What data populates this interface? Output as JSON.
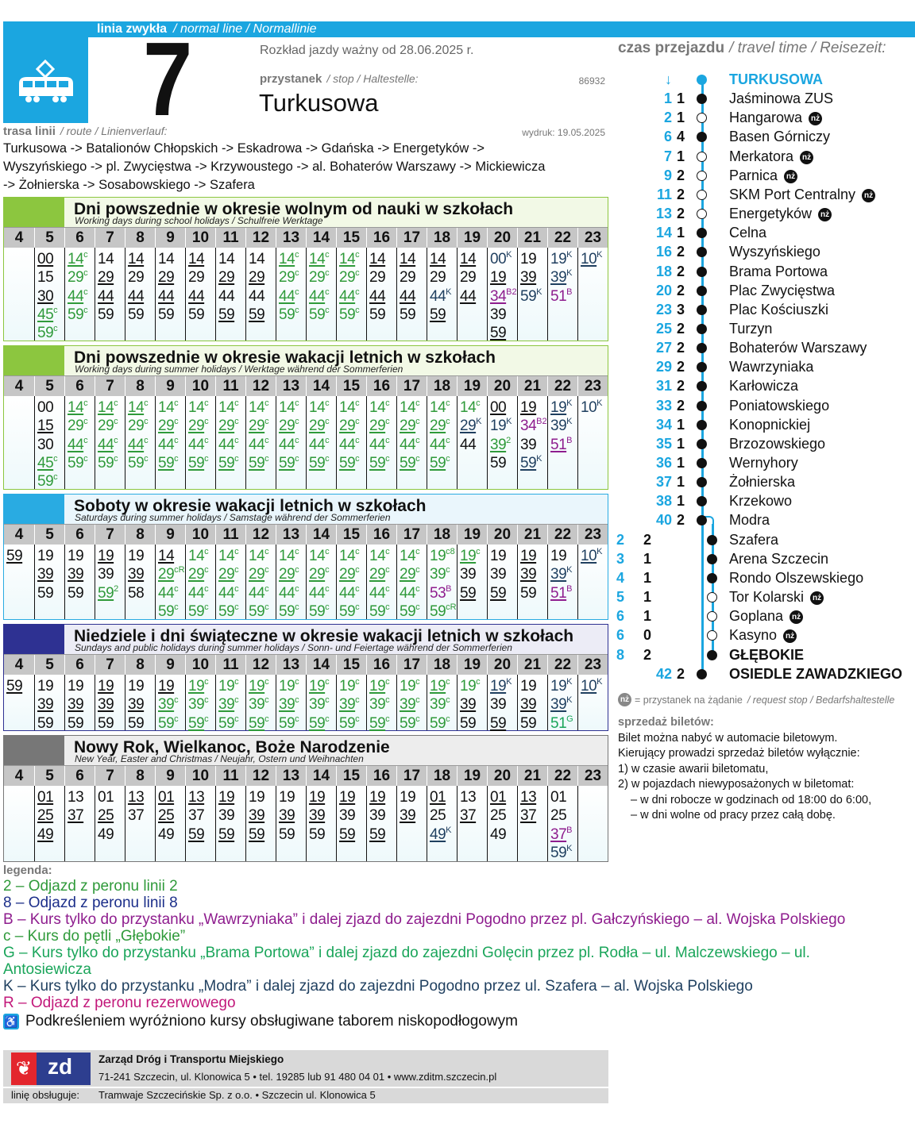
{
  "header": {
    "line_type": "linia zwykła",
    "line_type_en_de": "/ normal line / Normallinie",
    "line_number": "7",
    "valid_from": "Rozkład jazdy ważny od 28.06.2025 r.",
    "stop_label": "przystanek",
    "stop_label_en_de": "/ stop / Haltestelle:",
    "stop_id": "86932",
    "stop_name": "Turkusowa",
    "route_label": "trasa linii",
    "route_label_en_de": "/ route / Linienverlauf:",
    "printed": "wydruk: 19.05.2025",
    "route_lines": [
      "Turkusowa -> Batalionów Chłopskich -> Eskadrowa -> Gdańska -> Energetyków ->",
      "Wyszyńskiego -> pl. Zwycięstwa -> Krzywoustego -> al. Bohaterów Warszawy -> Mickiewicza",
      "-> Żołnierska -> Sosabowskiego -> Szafera"
    ],
    "icon": "tram-icon",
    "brand_color": "#1ba6e0"
  },
  "hours": [
    "4",
    "5",
    "6",
    "7",
    "8",
    "9",
    "10",
    "11",
    "12",
    "13",
    "14",
    "15",
    "16",
    "17",
    "18",
    "19",
    "20",
    "21",
    "22",
    "23"
  ],
  "superscript_colors": {
    "c": "#2f9a3a",
    "2": "#2f9a3a",
    "c8": "#2f9a3a",
    "cR": "#2f9a3a",
    "K": "#1f3f5f",
    "B": "#8e1d8e",
    "B2": "#8e1d8e",
    "G": "#1aa55a"
  },
  "sections": [
    {
      "title": "Dni powszednie w okresie wolnym od nauki w szkołach",
      "subtitle": "Working days during school holidays / Schulfreie Werktage",
      "accent": "#8cc63f",
      "tint": "#f2f9e6",
      "minutes": [
        [],
        [
          "_00",
          "15",
          "_30",
          "_45^c",
          "59^c"
        ],
        [
          "_14^c",
          "29^c",
          "_44^c",
          "59^c"
        ],
        [
          "14",
          "_29",
          "_44",
          "59"
        ],
        [
          "_14",
          "29",
          "_44",
          "59"
        ],
        [
          "14",
          "_29",
          "_44",
          "59"
        ],
        [
          "_14",
          "29",
          "_44",
          "59"
        ],
        [
          "14",
          "_29",
          "44",
          "_59"
        ],
        [
          "14",
          "_29",
          "44",
          "_59"
        ],
        [
          "_14^c",
          "29^c",
          "_44^c",
          "59^c"
        ],
        [
          "_14^c",
          "29^c",
          "_44^c",
          "59^c"
        ],
        [
          "_14^c",
          "29^c",
          "_44^c",
          "59^c"
        ],
        [
          "_14",
          "29",
          "_44",
          "59"
        ],
        [
          "_14",
          "29",
          "_44",
          "59"
        ],
        [
          "_14",
          "29",
          "44^K",
          "_59"
        ],
        [
          "_14",
          "29",
          "_44"
        ],
        [
          "00^K",
          "_19",
          "_34^B2",
          "39",
          "_59"
        ],
        [
          "19",
          "_39",
          "59^K"
        ],
        [
          "19^K",
          "_39^K",
          "51^B"
        ],
        [
          "_10^K"
        ]
      ]
    },
    {
      "title": "Dni powszednie w okresie wakacji letnich w szkołach",
      "subtitle": "Working days during summer holidays / Werktage während der Sommerferien",
      "accent": "#8cc63f",
      "tint": "#f2f9e6",
      "minutes": [
        [],
        [
          "00",
          "_15",
          "30",
          "_45^c",
          "59^c"
        ],
        [
          "_14^c",
          "29^c",
          "_44^c",
          "59^c"
        ],
        [
          "_14^c",
          "29^c",
          "_44^c",
          "59^c"
        ],
        [
          "_14^c",
          "29^c",
          "_44^c",
          "59^c"
        ],
        [
          "14^c",
          "_29^c",
          "44^c",
          "_59^c"
        ],
        [
          "14^c",
          "_29^c",
          "44^c",
          "_59^c"
        ],
        [
          "14^c",
          "_29^c",
          "44^c",
          "_59^c"
        ],
        [
          "14^c",
          "_29^c",
          "44^c",
          "_59^c"
        ],
        [
          "14^c",
          "_29^c",
          "44^c",
          "_59^c"
        ],
        [
          "14^c",
          "_29^c",
          "44^c",
          "_59^c"
        ],
        [
          "14^c",
          "_29^c",
          "44^c",
          "_59^c"
        ],
        [
          "14^c",
          "_29^c",
          "44^c",
          "_59^c"
        ],
        [
          "14^c",
          "_29^c",
          "44^c",
          "_59^c"
        ],
        [
          "14^c",
          "_29^c",
          "44^c",
          "_59^c"
        ],
        [
          "14^c",
          "_29^K",
          "44"
        ],
        [
          "_00",
          "19^K",
          "_39^2",
          "59"
        ],
        [
          "_19",
          "34^B2",
          "39",
          "_59^K"
        ],
        [
          "_19^K",
          "39^K",
          "_51^B"
        ],
        [
          "10^K"
        ]
      ]
    },
    {
      "title": "Soboty w okresie wakacji letnich w szkołach",
      "subtitle": "Saturdays during summer holidays / Samstage während der Sommerferien",
      "accent": "#29abe2",
      "tint": "#eaf6fc",
      "minutes": [
        [
          "_59"
        ],
        [
          "19",
          "_39",
          "59"
        ],
        [
          "19",
          "_39",
          "59"
        ],
        [
          "_19",
          "39",
          "_59^2"
        ],
        [
          "19",
          "_39",
          "58"
        ],
        [
          "_14",
          "_29^cR",
          "44^c",
          "59^c"
        ],
        [
          "14^c",
          "_29^c",
          "44^c",
          "59^c"
        ],
        [
          "14^c",
          "_29^c",
          "44^c",
          "59^c"
        ],
        [
          "14^c",
          "_29^c",
          "44^c",
          "59^c"
        ],
        [
          "14^c",
          "_29^c",
          "44^c",
          "59^c"
        ],
        [
          "14^c",
          "_29^c",
          "44^c",
          "59^c"
        ],
        [
          "14^c",
          "_29^c",
          "44^c",
          "59^c"
        ],
        [
          "14^c",
          "_29^c",
          "44^c",
          "59^c"
        ],
        [
          "14^c",
          "_29^c",
          "44^c",
          "59^c"
        ],
        [
          "19^c8",
          "39^c",
          "53^B",
          "59^cR"
        ],
        [
          "_19^c",
          "39",
          "_59"
        ],
        [
          "19",
          "39",
          "_59"
        ],
        [
          "_19",
          "_39",
          "59"
        ],
        [
          "19",
          "_39^K",
          "_51^B"
        ],
        [
          "_10^K"
        ]
      ]
    },
    {
      "title": "Niedziele i dni świąteczne w okresie wakacji letnich w szkołach",
      "subtitle": "Sundays and public holidays during summer holidays / Sonn- und Feiertage während der Sommerferien",
      "accent": "#2e3192",
      "tint": "#ececf6",
      "minutes": [
        [
          "_59"
        ],
        [
          "19",
          "_39",
          "59"
        ],
        [
          "19",
          "_39",
          "59"
        ],
        [
          "_19",
          "_39",
          "59"
        ],
        [
          "19",
          "_39",
          "59"
        ],
        [
          "_19",
          "_39^c",
          "59^c"
        ],
        [
          "_19^c",
          "39^c",
          "_59^c"
        ],
        [
          "19^c",
          "_39^c",
          "59^c"
        ],
        [
          "_19^c",
          "39^c",
          "_59^c"
        ],
        [
          "19^c",
          "_39^c",
          "59^c"
        ],
        [
          "_19^c",
          "39^c",
          "_59^c"
        ],
        [
          "19^c",
          "_39^c",
          "59^c"
        ],
        [
          "_19^c",
          "39^c",
          "_59^c"
        ],
        [
          "19^c",
          "_39^c",
          "59^c"
        ],
        [
          "_19^c",
          "39^c",
          "59^c"
        ],
        [
          "19^c",
          "_39",
          "59"
        ],
        [
          "_19^K",
          "39",
          "_59"
        ],
        [
          "19",
          "_39",
          "59"
        ],
        [
          "19^K",
          "_39^K",
          "51^G"
        ],
        [
          "_10^K"
        ]
      ]
    },
    {
      "title": "Nowy Rok, Wielkanoc, Boże Narodzenie",
      "subtitle": "New Year, Easter and Christmas / Neujahr, Ostern und Weihnachten",
      "accent": "#777777",
      "tint": "#ededed",
      "minutes": [
        [],
        [
          "_01",
          "_25",
          "_49"
        ],
        [
          "13",
          "_37"
        ],
        [
          "01",
          "_25",
          "49"
        ],
        [
          "_13",
          "37"
        ],
        [
          "_01",
          "_25",
          "49"
        ],
        [
          "_13",
          "37",
          "_59"
        ],
        [
          "_19",
          "39",
          "_59"
        ],
        [
          "19",
          "_39",
          "_59"
        ],
        [
          "19",
          "_39",
          "59"
        ],
        [
          "_19",
          "_39",
          "59"
        ],
        [
          "_19",
          "39",
          "_59"
        ],
        [
          "_19",
          "39",
          "_59"
        ],
        [
          "19",
          "_39"
        ],
        [
          "_01",
          "25",
          "_49^K"
        ],
        [
          "13",
          "_37"
        ],
        [
          "_01",
          "25",
          "49"
        ],
        [
          "_13",
          "_37"
        ],
        [
          "01",
          "25",
          "_37^B",
          "59^K"
        ],
        []
      ]
    }
  ],
  "travel_time": {
    "label": "czas przejazdu",
    "label_en_de": "/ travel time / Reisezeit:",
    "direction_icon": "arrow-down-icon",
    "stops": [
      {
        "total": "",
        "seg": "",
        "name": "TURKUSOWA",
        "type": "start"
      },
      {
        "total": "1",
        "seg": "1",
        "name": "Jaśminowa ZUS",
        "type": "stop"
      },
      {
        "total": "2",
        "seg": "1",
        "name": "Hangarowa",
        "type": "request"
      },
      {
        "total": "6",
        "seg": "4",
        "name": "Basen Górniczy",
        "type": "stop"
      },
      {
        "total": "7",
        "seg": "1",
        "name": "Merkatora",
        "type": "request"
      },
      {
        "total": "9",
        "seg": "2",
        "name": "Parnica",
        "type": "request"
      },
      {
        "total": "11",
        "seg": "2",
        "name": "SKM Port Centralny",
        "type": "request"
      },
      {
        "total": "13",
        "seg": "2",
        "name": "Energetyków",
        "type": "request"
      },
      {
        "total": "14",
        "seg": "1",
        "name": "Celna",
        "type": "stop"
      },
      {
        "total": "16",
        "seg": "2",
        "name": "Wyszyńskiego",
        "type": "stop"
      },
      {
        "total": "18",
        "seg": "2",
        "name": "Brama Portowa",
        "type": "stop"
      },
      {
        "total": "20",
        "seg": "2",
        "name": "Plac Zwycięstwa",
        "type": "stop"
      },
      {
        "total": "23",
        "seg": "3",
        "name": "Plac Kościuszki",
        "type": "stop"
      },
      {
        "total": "25",
        "seg": "2",
        "name": "Turzyn",
        "type": "stop"
      },
      {
        "total": "27",
        "seg": "2",
        "name": "Bohaterów Warszawy",
        "type": "stop"
      },
      {
        "total": "29",
        "seg": "2",
        "name": "Wawrzyniaka",
        "type": "stop"
      },
      {
        "total": "31",
        "seg": "2",
        "name": "Karłowicza",
        "type": "stop"
      },
      {
        "total": "33",
        "seg": "2",
        "name": "Poniatowskiego",
        "type": "stop"
      },
      {
        "total": "34",
        "seg": "1",
        "name": "Konopnickiej",
        "type": "stop"
      },
      {
        "total": "35",
        "seg": "1",
        "name": "Brzozowskiego",
        "type": "stop"
      },
      {
        "total": "36",
        "seg": "1",
        "name": "Wernyhory",
        "type": "stop"
      },
      {
        "total": "37",
        "seg": "1",
        "name": "Żołnierska",
        "type": "stop"
      },
      {
        "total": "38",
        "seg": "1",
        "name": "Krzekowo",
        "type": "stop"
      },
      {
        "total": "40",
        "seg": "2",
        "name": "Modra",
        "type": "stop"
      },
      {
        "total": "2",
        "seg": "2",
        "name": "Szafera",
        "type": "stop",
        "branch": true
      },
      {
        "total": "3",
        "seg": "1",
        "name": "Arena Szczecin",
        "type": "stop",
        "branch": true
      },
      {
        "total": "4",
        "seg": "1",
        "name": "Rondo Olszewskiego",
        "type": "stop",
        "branch": true
      },
      {
        "total": "5",
        "seg": "1",
        "name": "Tor Kolarski",
        "type": "request",
        "branch": true
      },
      {
        "total": "6",
        "seg": "1",
        "name": "Goplana",
        "type": "request",
        "branch": true
      },
      {
        "total": "6",
        "seg": "0",
        "name": "Kasyno",
        "type": "request",
        "branch": true
      },
      {
        "total": "8",
        "seg": "2",
        "name": "GŁĘBOKIE",
        "type": "terminal",
        "branch": true
      },
      {
        "total": "42",
        "seg": "2",
        "name": "OSIEDLE ZAWADZKIEGO",
        "type": "terminal"
      }
    ],
    "request_badge": "nż",
    "request_note": "= przystanek na żądanie",
    "request_note_en_de": "/ request stop / Bedarfshaltestelle"
  },
  "tickets": {
    "title": "sprzedaż biletów:",
    "lines": [
      "Bilet można nabyć w automacie biletowym.",
      "Kierujący prowadzi sprzedaż biletów wyłącznie:",
      "1) w czasie awarii biletomatu,",
      "2) w pojazdach niewyposażonych w biletomat:"
    ],
    "sub_lines": [
      "– w dni robocze w godzinach od 18:00 do 6:00,",
      "– w dni wolne od pracy przez całą dobę."
    ]
  },
  "legend": {
    "title": "legenda:",
    "items": [
      {
        "text": "2 – Odjazd z peronu linii 2",
        "color": "#2f9a3a"
      },
      {
        "text": "8 – Odjazd z peronu linii 8",
        "color": "#1c2f8a"
      },
      {
        "text": "B – Kurs tylko do przystanku „Wawrzyniaka” i dalej zjazd do zajezdni Pogodno przez pl. Gałczyńskiego – al. Wojska Polskiego",
        "color": "#8e1d8e"
      },
      {
        "text": "c – Kurs do pętli „Głębokie”",
        "color": "#2f9a3a"
      },
      {
        "text": "G – Kurs tylko do przystanku „Brama Portowa” i dalej zjazd do zajezdni Golęcin przez pl. Rodła – ul. Malczewskiego – ul. Antosiewicza",
        "color": "#1aa55a"
      },
      {
        "text": "K – Kurs tylko do przystanku „Modra” i dalej zjazd do zajezdni Pogodno przez ul. Szafera – al. Wojska Polskiego",
        "color": "#1f3f5f"
      },
      {
        "text": "R – Odjazd z peronu rezerwowego",
        "color": "#c2187a"
      }
    ],
    "accessibility": "Podkreśleniem wyróżniono kursy obsługiwane taborem niskopodłogowym"
  },
  "footer": {
    "logo_text": "zd",
    "org": "Zarząd Dróg i Transportu Miejskiego",
    "address": "71-241 Szczecin, ul. Klonowica 5 • tel. 19285 lub 91 480 04 01 • www.zditm.szczecin.pl",
    "operator_label": "linię obsługuje:",
    "operator": "Tramwaje Szczecińskie Sp. z o.o. • Szczecin ul. Klonowica 5"
  }
}
